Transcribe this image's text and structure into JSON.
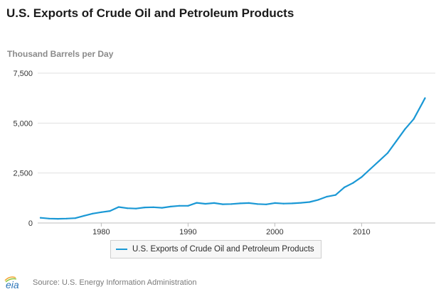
{
  "chart_data": {
    "type": "line",
    "title": "U.S. Exports of Crude Oil and Petroleum Products",
    "ylabel": "Thousand Barrels per Day",
    "xlabel": "",
    "xlim": [
      1973,
      2017.5
    ],
    "ylim": [
      0,
      7500
    ],
    "x_ticks": [
      1980,
      1990,
      2000,
      2010
    ],
    "x_tick_labels": [
      "1980",
      "1990",
      "2000",
      "2010"
    ],
    "y_ticks": [
      0,
      2500,
      5000,
      7500
    ],
    "y_tick_labels": [
      "0",
      "2,500",
      "5,000",
      "7,500"
    ],
    "grid": "horizontal",
    "legend_position": "bottom-center",
    "series": [
      {
        "name": "U.S. Exports of Crude Oil and Petroleum Products",
        "color": "#1a98d5",
        "points": [
          [
            1973.0,
            260
          ],
          [
            1974.0,
            220
          ],
          [
            1975.0,
            210
          ],
          [
            1976.0,
            220
          ],
          [
            1977.0,
            240
          ],
          [
            1978.0,
            360
          ],
          [
            1979.0,
            470
          ],
          [
            1980.0,
            540
          ],
          [
            1981.0,
            600
          ],
          [
            1982.0,
            800
          ],
          [
            1983.0,
            740
          ],
          [
            1984.0,
            720
          ],
          [
            1985.0,
            780
          ],
          [
            1986.0,
            790
          ],
          [
            1987.0,
            760
          ],
          [
            1988.0,
            820
          ],
          [
            1989.0,
            860
          ],
          [
            1990.0,
            860
          ],
          [
            1991.0,
            1010
          ],
          [
            1992.0,
            960
          ],
          [
            1993.0,
            1000
          ],
          [
            1994.0,
            940
          ],
          [
            1995.0,
            950
          ],
          [
            1996.0,
            980
          ],
          [
            1997.0,
            1000
          ],
          [
            1998.0,
            950
          ],
          [
            1999.0,
            930
          ],
          [
            2000.0,
            1000
          ],
          [
            2001.0,
            970
          ],
          [
            2002.0,
            980
          ],
          [
            2003.0,
            1010
          ],
          [
            2004.0,
            1050
          ],
          [
            2005.0,
            1160
          ],
          [
            2006.0,
            1320
          ],
          [
            2007.0,
            1400
          ],
          [
            2008.0,
            1780
          ],
          [
            2009.0,
            2000
          ],
          [
            2010.0,
            2300
          ],
          [
            2011.0,
            2700
          ],
          [
            2012.0,
            3100
          ],
          [
            2013.0,
            3500
          ],
          [
            2014.0,
            4100
          ],
          [
            2015.0,
            4700
          ],
          [
            2016.0,
            5200
          ],
          [
            2017.0,
            6000
          ],
          [
            2017.3,
            6250
          ]
        ]
      }
    ]
  },
  "footer": {
    "logo_text": "eia",
    "source": "Source: U.S. Energy Information Administration"
  },
  "colors": {
    "series": "#1a98d5",
    "grid": "#e0e0e0",
    "axis": "#bdbdbd",
    "logo": "#2a74b8"
  }
}
